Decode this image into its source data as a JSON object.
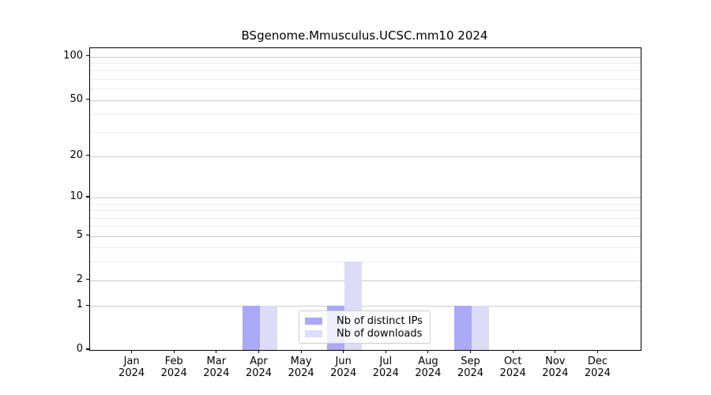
{
  "chart_data": {
    "type": "bar",
    "title": "BSgenome.Mmusculus.UCSC.mm10 2024",
    "x_year": "2024",
    "categories": [
      "Jan",
      "Feb",
      "Mar",
      "Apr",
      "May",
      "Jun",
      "Jul",
      "Aug",
      "Sep",
      "Oct",
      "Nov",
      "Dec"
    ],
    "series": [
      {
        "name": "Nb of distinct IPs",
        "color": "#a9a9f5",
        "values": [
          0,
          0,
          0,
          1,
          0,
          1,
          0,
          0,
          1,
          0,
          0,
          0
        ]
      },
      {
        "name": "Nb of downloads",
        "color": "#dcdcf8",
        "values": [
          0,
          0,
          0,
          1,
          0,
          3,
          0,
          0,
          1,
          0,
          0,
          0
        ]
      }
    ],
    "yscale": "log1p",
    "ylim": [
      0,
      114
    ],
    "yticks": [
      0,
      1,
      2,
      5,
      10,
      20,
      50,
      100
    ],
    "minor_gridlines": [
      3,
      4,
      6,
      7,
      8,
      9,
      30,
      40,
      60,
      70,
      80,
      90
    ],
    "grid": true,
    "legend_position": "lower-center-inside"
  },
  "style": {
    "major_grid_color": "#cccccc",
    "minor_grid_color": "#ececec",
    "axis_color": "#000000",
    "legend_border_color": "#cccccc",
    "background": "#ffffff"
  }
}
